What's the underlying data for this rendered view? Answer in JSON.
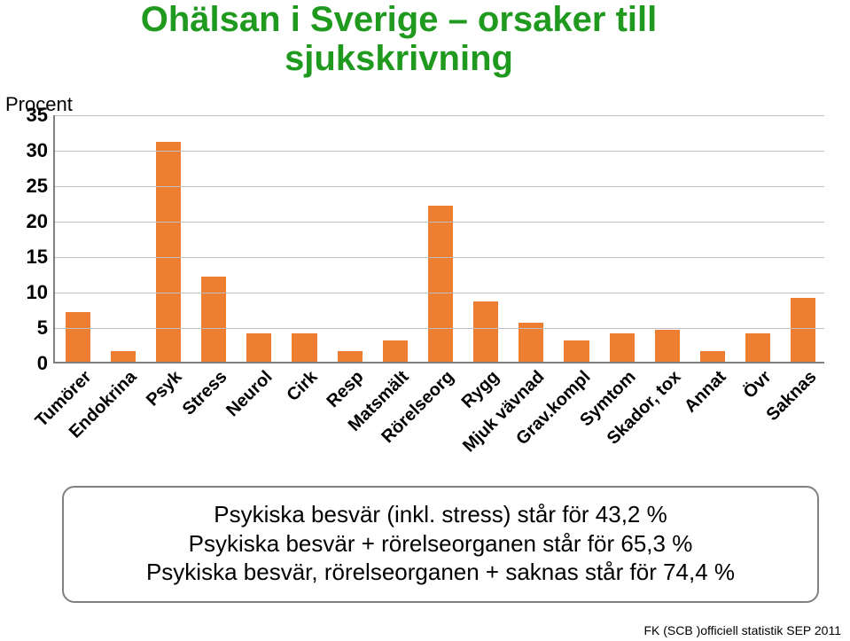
{
  "title": {
    "line1": "Ohälsan i Sverige – orsaker till",
    "line2": "sjukskrivning",
    "color": "#1f9a1f",
    "fontsize": 40
  },
  "ylabel": "Procent",
  "chart": {
    "type": "bar",
    "ylim": [
      0,
      35
    ],
    "ytick_step": 5,
    "yticks": [
      0,
      5,
      10,
      15,
      20,
      25,
      30,
      35
    ],
    "bar_color": "#ed7d31",
    "grid_color": "#bfbfbf",
    "axis_color": "#808080",
    "background_color": "#ffffff",
    "tick_fontsize": 22,
    "xlabel_fontsize": 20,
    "xlabel_rotation": -45,
    "bar_width_rel": 0.55,
    "categories": [
      "Tumörer",
      "Endokrina",
      "Psyk",
      "Stress",
      "Neurol",
      "Cirk",
      "Resp",
      "Matsmält",
      "Rörelseorg",
      "Rygg",
      "Mjuk vävnad",
      "Grav.kompl",
      "Symtom",
      "Skador, tox",
      "Annat",
      "Övr",
      "Saknas"
    ],
    "values": [
      7,
      1.5,
      31,
      12,
      4,
      4,
      1.5,
      3,
      22,
      8.5,
      5.5,
      3,
      4,
      4.5,
      1.5,
      4,
      9
    ]
  },
  "textbox": {
    "line1": "Psykiska besvär (inkl. stress) står för 43,2 %",
    "line2": "Psykiska besvär + rörelseorganen står för 65,3 %",
    "line3": "Psykiska besvär, rörelseorganen + saknas står för 74,4 %",
    "border_color": "#808080",
    "fontsize": 26
  },
  "source": "FK (SCB )officiell statistik SEP 2011"
}
